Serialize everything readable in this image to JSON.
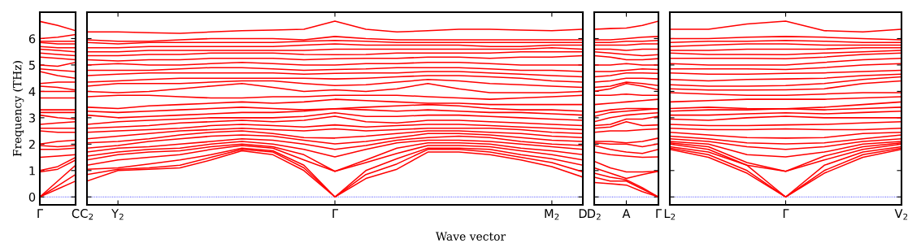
{
  "chart_data": [
    {
      "type": "line",
      "ylabel": "Frequency (THz)",
      "categories": [
        "Γ",
        null,
        "C"
      ],
      "ylim": [
        -0.3,
        7.0
      ],
      "yticks": [
        0,
        1,
        2,
        3,
        4,
        5,
        6
      ],
      "grid": false,
      "legend": false,
      "marker": "none",
      "line_style": "solid",
      "ref_lines": [
        {
          "axis": "y",
          "value": 0,
          "color": "#0000ff",
          "line_style": "dotted"
        }
      ],
      "series": [
        {
          "color": "#ff0000",
          "values": [
            0,
            0.3,
            0.6
          ]
        },
        {
          "color": "#ff0000",
          "values": [
            0,
            0.42,
            0.85
          ]
        },
        {
          "color": "#ff0000",
          "values": [
            0,
            0.6,
            1.2
          ]
        },
        {
          "color": "#ff0000",
          "values": [
            0.95,
            1.05,
            1.4
          ]
        },
        {
          "color": "#ff0000",
          "values": [
            1.0,
            1.15,
            1.5
          ]
        },
        {
          "color": "#ff0000",
          "values": [
            1.5,
            1.55,
            1.6
          ]
        },
        {
          "color": "#ff0000",
          "values": [
            1.8,
            1.8,
            1.85
          ]
        },
        {
          "color": "#ff0000",
          "values": [
            1.95,
            1.9,
            1.95
          ]
        },
        {
          "color": "#ff0000",
          "values": [
            2.0,
            2.1,
            2.15
          ]
        },
        {
          "color": "#ff0000",
          "values": [
            2.5,
            2.45,
            2.45
          ]
        },
        {
          "color": "#ff0000",
          "values": [
            2.6,
            2.6,
            2.6
          ]
        },
        {
          "color": "#ff0000",
          "values": [
            2.75,
            2.8,
            2.85
          ]
        },
        {
          "color": "#ff0000",
          "values": [
            3.1,
            3.0,
            2.95
          ]
        },
        {
          "color": "#ff0000",
          "values": [
            3.2,
            3.2,
            3.2
          ]
        },
        {
          "color": "#ff0000",
          "values": [
            3.3,
            3.3,
            3.3
          ]
        },
        {
          "color": "#ff0000",
          "values": [
            3.75,
            3.75,
            3.75
          ]
        },
        {
          "color": "#ff0000",
          "values": [
            4.0,
            4.0,
            4.0
          ]
        },
        {
          "color": "#ff0000",
          "values": [
            4.2,
            4.15,
            4.05
          ]
        },
        {
          "color": "#ff0000",
          "values": [
            4.3,
            4.35,
            4.35
          ]
        },
        {
          "color": "#ff0000",
          "values": [
            4.75,
            4.6,
            4.5
          ]
        },
        {
          "color": "#ff0000",
          "values": [
            4.85,
            4.8,
            4.75
          ]
        },
        {
          "color": "#ff0000",
          "values": [
            5.0,
            4.95,
            5.1
          ]
        },
        {
          "color": "#ff0000",
          "values": [
            5.3,
            5.25,
            5.2
          ]
        },
        {
          "color": "#ff0000",
          "values": [
            5.45,
            5.4,
            5.35
          ]
        },
        {
          "color": "#ff0000",
          "values": [
            5.6,
            5.55,
            5.5
          ]
        },
        {
          "color": "#ff0000",
          "values": [
            5.7,
            5.65,
            5.65
          ]
        },
        {
          "color": "#ff0000",
          "values": [
            5.85,
            5.8,
            5.8
          ]
        },
        {
          "color": "#ff0000",
          "values": [
            5.9,
            5.9,
            5.9
          ]
        },
        {
          "color": "#ff0000",
          "values": [
            6.0,
            6.05,
            6.15
          ]
        },
        {
          "color": "#ff0000",
          "values": [
            6.65,
            6.5,
            6.3
          ]
        }
      ]
    },
    {
      "type": "line",
      "xlabel": "Wave vector",
      "categories": [
        "C$_{2}$",
        "Y$_{2}$",
        null,
        null,
        null,
        null,
        null,
        null,
        "Γ",
        null,
        null,
        null,
        null,
        null,
        null,
        "M$_{2}$",
        "D"
      ],
      "ylim": [
        -0.3,
        7.0
      ],
      "yticks": [
        0,
        1,
        2,
        3,
        4,
        5,
        6
      ],
      "tick_labels": "x",
      "grid": false,
      "legend": false,
      "marker": "none",
      "line_style": "solid",
      "ref_lines": [
        {
          "axis": "y",
          "value": 0,
          "color": "#0000ff",
          "line_style": "dotted"
        }
      ],
      "series": [
        {
          "color": "#ff0000",
          "values": [
            0.6,
            1.0,
            1.05,
            1.1,
            1.4,
            1.75,
            1.6,
            1.0,
            0,
            0.7,
            1.05,
            1.7,
            1.7,
            1.6,
            1.4,
            1.15,
            0.75
          ]
        },
        {
          "color": "#ff0000",
          "values": [
            0.85,
            1.05,
            1.1,
            1.2,
            1.5,
            1.8,
            1.7,
            1.1,
            0,
            0.85,
            1.25,
            1.8,
            1.8,
            1.7,
            1.5,
            1.3,
            0.95
          ]
        },
        {
          "color": "#ff0000",
          "values": [
            1.05,
            1.1,
            1.25,
            1.4,
            1.6,
            1.85,
            1.75,
            1.2,
            0,
            1.0,
            1.45,
            1.85,
            1.85,
            1.8,
            1.6,
            1.45,
            1.2
          ]
        },
        {
          "color": "#ff0000",
          "values": [
            1.2,
            1.4,
            1.5,
            1.6,
            1.8,
            1.95,
            1.85,
            1.4,
            0.97,
            1.3,
            1.65,
            1.95,
            1.95,
            1.9,
            1.75,
            1.6,
            1.4
          ]
        },
        {
          "color": "#ff0000",
          "values": [
            1.4,
            1.6,
            1.7,
            1.75,
            1.9,
            2.0,
            1.9,
            1.6,
            0.97,
            1.4,
            1.85,
            2.05,
            2.05,
            2.0,
            1.85,
            1.75,
            1.6
          ]
        },
        {
          "color": "#ff0000",
          "values": [
            1.55,
            1.7,
            1.8,
            1.85,
            2.0,
            2.1,
            2.0,
            1.8,
            1.52,
            1.8,
            2.05,
            2.15,
            2.15,
            2.1,
            2.0,
            1.9,
            1.8
          ]
        },
        {
          "color": "#ff0000",
          "values": [
            1.7,
            1.85,
            1.9,
            2.0,
            2.1,
            2.2,
            2.15,
            2.0,
            1.8,
            1.95,
            2.15,
            2.25,
            2.3,
            2.25,
            2.1,
            2.0,
            1.95
          ]
        },
        {
          "color": "#ff0000",
          "values": [
            1.85,
            1.95,
            2.1,
            2.2,
            2.3,
            2.35,
            2.3,
            2.15,
            2.01,
            2.1,
            2.25,
            2.4,
            2.4,
            2.35,
            2.25,
            2.15,
            2.1
          ]
        },
        {
          "color": "#ff0000",
          "values": [
            2.05,
            2.1,
            2.2,
            2.35,
            2.45,
            2.5,
            2.4,
            2.25,
            2.23,
            2.3,
            2.4,
            2.5,
            2.5,
            2.45,
            2.4,
            2.3,
            2.25
          ]
        },
        {
          "color": "#ff0000",
          "values": [
            2.2,
            2.3,
            2.4,
            2.5,
            2.55,
            2.6,
            2.55,
            2.5,
            2.58,
            2.5,
            2.55,
            2.6,
            2.6,
            2.6,
            2.55,
            2.45,
            2.4
          ]
        },
        {
          "color": "#ff0000",
          "values": [
            2.45,
            2.5,
            2.55,
            2.6,
            2.7,
            2.75,
            2.7,
            2.65,
            2.73,
            2.65,
            2.7,
            2.75,
            2.75,
            2.7,
            2.65,
            2.6,
            2.55
          ]
        },
        {
          "color": "#ff0000",
          "values": [
            2.6,
            2.65,
            2.7,
            2.8,
            2.85,
            2.9,
            2.85,
            2.9,
            3.06,
            2.85,
            2.8,
            2.9,
            2.9,
            2.85,
            2.8,
            2.75,
            2.7
          ]
        },
        {
          "color": "#ff0000",
          "values": [
            2.75,
            2.85,
            2.9,
            2.95,
            3.0,
            3.0,
            3.0,
            3.05,
            3.19,
            3.05,
            3.05,
            3.1,
            3.1,
            3.05,
            3.0,
            2.95,
            2.9
          ]
        },
        {
          "color": "#ff0000",
          "values": [
            3.1,
            3.0,
            3.05,
            3.1,
            3.15,
            3.2,
            3.2,
            3.25,
            3.34,
            3.3,
            3.25,
            3.3,
            3.25,
            3.2,
            3.2,
            3.15,
            3.1
          ]
        },
        {
          "color": "#ff0000",
          "values": [
            3.25,
            3.2,
            3.25,
            3.3,
            3.35,
            3.4,
            3.35,
            3.3,
            3.34,
            3.4,
            3.45,
            3.5,
            3.45,
            3.35,
            3.3,
            3.3,
            3.25
          ]
        },
        {
          "color": "#ff0000",
          "values": [
            3.4,
            3.35,
            3.45,
            3.5,
            3.55,
            3.6,
            3.55,
            3.6,
            3.7,
            3.65,
            3.6,
            3.55,
            3.55,
            3.5,
            3.5,
            3.5,
            3.5
          ]
        },
        {
          "color": "#ff0000",
          "values": [
            3.8,
            3.85,
            3.85,
            3.8,
            3.75,
            3.75,
            3.8,
            3.8,
            3.85,
            3.85,
            3.85,
            3.8,
            3.75,
            3.7,
            3.75,
            3.8,
            3.85
          ]
        },
        {
          "color": "#ff0000",
          "values": [
            4.0,
            3.95,
            4.0,
            4.1,
            4.2,
            4.3,
            4.15,
            4.0,
            4.06,
            4.0,
            4.1,
            4.3,
            4.1,
            3.95,
            3.95,
            3.95,
            4.0
          ]
        },
        {
          "color": "#ff0000",
          "values": [
            4.2,
            4.3,
            4.3,
            4.3,
            4.35,
            4.4,
            4.4,
            4.3,
            4.22,
            4.25,
            4.35,
            4.45,
            4.4,
            4.3,
            4.25,
            4.2,
            4.15
          ]
        },
        {
          "color": "#ff0000",
          "values": [
            4.35,
            4.4,
            4.45,
            4.5,
            4.5,
            4.5,
            4.5,
            4.5,
            4.47,
            4.5,
            4.55,
            4.6,
            4.6,
            4.55,
            4.5,
            4.4,
            4.35
          ]
        },
        {
          "color": "#ff0000",
          "values": [
            4.6,
            4.65,
            4.7,
            4.7,
            4.7,
            4.7,
            4.7,
            4.65,
            4.68,
            4.7,
            4.7,
            4.75,
            4.75,
            4.7,
            4.65,
            4.6,
            4.55
          ]
        },
        {
          "color": "#ff0000",
          "values": [
            4.8,
            4.8,
            4.8,
            4.85,
            4.9,
            4.9,
            4.85,
            4.8,
            4.83,
            4.85,
            4.9,
            4.9,
            4.9,
            4.85,
            4.8,
            4.8,
            4.75
          ]
        },
        {
          "color": "#ff0000",
          "values": [
            5.0,
            5.05,
            5.0,
            5.0,
            5.05,
            5.1,
            5.05,
            5.0,
            5.0,
            5.05,
            5.05,
            5.1,
            5.1,
            5.05,
            5.0,
            5.0,
            5.0
          ]
        },
        {
          "color": "#ff0000",
          "values": [
            5.2,
            5.15,
            5.2,
            5.2,
            5.25,
            5.25,
            5.25,
            5.2,
            5.24,
            5.25,
            5.25,
            5.3,
            5.3,
            5.25,
            5.3,
            5.3,
            5.35
          ]
        },
        {
          "color": "#ff0000",
          "values": [
            5.35,
            5.35,
            5.4,
            5.4,
            5.45,
            5.45,
            5.45,
            5.4,
            5.39,
            5.4,
            5.45,
            5.45,
            5.45,
            5.45,
            5.5,
            5.5,
            5.5
          ]
        },
        {
          "color": "#ff0000",
          "values": [
            5.5,
            5.5,
            5.55,
            5.55,
            5.55,
            5.55,
            5.55,
            5.55,
            5.6,
            5.6,
            5.6,
            5.6,
            5.6,
            5.6,
            5.6,
            5.65,
            5.6
          ]
        },
        {
          "color": "#ff0000",
          "values": [
            5.65,
            5.65,
            5.7,
            5.7,
            5.7,
            5.7,
            5.7,
            5.75,
            5.8,
            5.75,
            5.75,
            5.75,
            5.75,
            5.7,
            5.7,
            5.75,
            5.75
          ]
        },
        {
          "color": "#ff0000",
          "values": [
            5.85,
            5.8,
            5.85,
            5.85,
            5.85,
            5.85,
            5.85,
            5.9,
            5.93,
            5.9,
            5.85,
            5.85,
            5.85,
            5.85,
            5.85,
            5.85,
            5.85
          ]
        },
        {
          "color": "#ff0000",
          "values": [
            5.95,
            5.9,
            5.9,
            5.95,
            6.0,
            6.0,
            6.0,
            5.95,
            6.08,
            6.0,
            5.95,
            5.95,
            5.95,
            5.95,
            5.95,
            5.95,
            5.95
          ]
        },
        {
          "color": "#ff0000",
          "values": [
            6.25,
            6.25,
            6.22,
            6.2,
            6.25,
            6.3,
            6.32,
            6.35,
            6.66,
            6.35,
            6.25,
            6.3,
            6.35,
            6.35,
            6.32,
            6.3,
            6.35
          ]
        }
      ]
    },
    {
      "type": "line",
      "categories": [
        "D$_{2}$",
        null,
        "A",
        null,
        "Γ"
      ],
      "ylim": [
        -0.3,
        7.0
      ],
      "yticks": [
        0,
        1,
        2,
        3,
        4,
        5,
        6
      ],
      "tick_labels": "x",
      "grid": false,
      "legend": false,
      "marker": "none",
      "line_style": "solid",
      "ref_lines": [
        {
          "axis": "y",
          "value": 0,
          "color": "#0000ff",
          "line_style": "dotted"
        }
      ],
      "series": [
        {
          "color": "#ff0000",
          "values": [
            0.55,
            0.5,
            0.45,
            0.2,
            0
          ]
        },
        {
          "color": "#ff0000",
          "values": [
            0.75,
            0.6,
            0.6,
            0.3,
            0
          ]
        },
        {
          "color": "#ff0000",
          "values": [
            0.9,
            0.75,
            0.65,
            0.35,
            0
          ]
        },
        {
          "color": "#ff0000",
          "values": [
            1.1,
            0.9,
            0.7,
            0.85,
            0.97
          ]
        },
        {
          "color": "#ff0000",
          "values": [
            1.35,
            1.1,
            0.95,
            0.95,
            0.97
          ]
        },
        {
          "color": "#ff0000",
          "values": [
            1.7,
            1.6,
            1.55,
            1.5,
            1.52
          ]
        },
        {
          "color": "#ff0000",
          "values": [
            1.95,
            1.8,
            1.7,
            1.65,
            1.8
          ]
        },
        {
          "color": "#ff0000",
          "values": [
            2.05,
            2.0,
            2.0,
            1.9,
            2.01
          ]
        },
        {
          "color": "#ff0000",
          "values": [
            2.1,
            2.1,
            2.05,
            2.1,
            2.23
          ]
        },
        {
          "color": "#ff0000",
          "values": [
            2.45,
            2.5,
            2.5,
            2.55,
            2.58
          ]
        },
        {
          "color": "#ff0000",
          "values": [
            2.6,
            2.65,
            2.85,
            2.7,
            2.73
          ]
        },
        {
          "color": "#ff0000",
          "values": [
            2.7,
            2.75,
            2.95,
            2.95,
            3.06
          ]
        },
        {
          "color": "#ff0000",
          "values": [
            2.85,
            3.0,
            3.1,
            3.15,
            3.19
          ]
        },
        {
          "color": "#ff0000",
          "values": [
            3.05,
            3.2,
            3.25,
            3.3,
            3.34
          ]
        },
        {
          "color": "#ff0000",
          "values": [
            3.2,
            3.3,
            3.35,
            3.35,
            3.34
          ]
        },
        {
          "color": "#ff0000",
          "values": [
            3.5,
            3.55,
            3.6,
            3.65,
            3.7
          ]
        },
        {
          "color": "#ff0000",
          "values": [
            3.85,
            3.85,
            3.9,
            3.85,
            3.85
          ]
        },
        {
          "color": "#ff0000",
          "values": [
            4.0,
            4.1,
            4.3,
            4.2,
            4.06
          ]
        },
        {
          "color": "#ff0000",
          "values": [
            4.15,
            4.2,
            4.35,
            4.3,
            4.22
          ]
        },
        {
          "color": "#ff0000",
          "values": [
            4.35,
            4.4,
            4.5,
            4.5,
            4.47
          ]
        },
        {
          "color": "#ff0000",
          "values": [
            4.55,
            4.6,
            4.7,
            4.7,
            4.68
          ]
        },
        {
          "color": "#ff0000",
          "values": [
            4.75,
            4.75,
            4.8,
            4.85,
            4.83
          ]
        },
        {
          "color": "#ff0000",
          "values": [
            5.0,
            5.0,
            5.05,
            5.0,
            5.0
          ]
        },
        {
          "color": "#ff0000",
          "values": [
            5.35,
            5.3,
            5.2,
            5.2,
            5.24
          ]
        },
        {
          "color": "#ff0000",
          "values": [
            5.5,
            5.45,
            5.4,
            5.35,
            5.39
          ]
        },
        {
          "color": "#ff0000",
          "values": [
            5.6,
            5.6,
            5.55,
            5.6,
            5.6
          ]
        },
        {
          "color": "#ff0000",
          "values": [
            5.75,
            5.75,
            5.75,
            5.8,
            5.8
          ]
        },
        {
          "color": "#ff0000",
          "values": [
            5.85,
            5.85,
            5.9,
            5.9,
            5.93
          ]
        },
        {
          "color": "#ff0000",
          "values": [
            5.95,
            5.95,
            6.0,
            6.05,
            6.08
          ]
        },
        {
          "color": "#ff0000",
          "values": [
            6.35,
            6.38,
            6.4,
            6.5,
            6.66
          ]
        }
      ]
    },
    {
      "type": "line",
      "categories": [
        "L$_{2}$",
        null,
        null,
        "Γ",
        null,
        null,
        "V$_{2}$"
      ],
      "ylim": [
        -0.3,
        7.0
      ],
      "yticks": [
        0,
        1,
        2,
        3,
        4,
        5,
        6
      ],
      "tick_labels": "x",
      "grid": false,
      "legend": false,
      "marker": "none",
      "line_style": "solid",
      "ref_lines": [
        {
          "axis": "y",
          "value": 0,
          "color": "#0000ff",
          "line_style": "dotted"
        }
      ],
      "series": [
        {
          "color": "#ff0000",
          "values": [
            1.8,
            1.5,
            0.9,
            0,
            0.9,
            1.5,
            1.8
          ]
        },
        {
          "color": "#ff0000",
          "values": [
            1.85,
            1.6,
            1.0,
            0,
            1.0,
            1.6,
            1.85
          ]
        },
        {
          "color": "#ff0000",
          "values": [
            1.9,
            1.7,
            1.2,
            0,
            1.2,
            1.7,
            1.9
          ]
        },
        {
          "color": "#ff0000",
          "values": [
            2.0,
            1.8,
            1.2,
            0.97,
            1.4,
            1.8,
            2.0
          ]
        },
        {
          "color": "#ff0000",
          "values": [
            2.05,
            1.9,
            1.3,
            0.97,
            1.55,
            1.9,
            2.05
          ]
        },
        {
          "color": "#ff0000",
          "values": [
            2.1,
            2.0,
            1.6,
            1.52,
            1.7,
            2.0,
            2.1
          ]
        },
        {
          "color": "#ff0000",
          "values": [
            2.2,
            2.1,
            1.9,
            1.8,
            1.9,
            2.1,
            2.2
          ]
        },
        {
          "color": "#ff0000",
          "values": [
            2.3,
            2.2,
            2.05,
            2.01,
            2.05,
            2.2,
            2.35
          ]
        },
        {
          "color": "#ff0000",
          "values": [
            2.45,
            2.35,
            2.25,
            2.23,
            2.25,
            2.4,
            2.45
          ]
        },
        {
          "color": "#ff0000",
          "values": [
            2.6,
            2.55,
            2.55,
            2.58,
            2.55,
            2.55,
            2.6
          ]
        },
        {
          "color": "#ff0000",
          "values": [
            2.75,
            2.7,
            2.7,
            2.73,
            2.75,
            2.8,
            2.85
          ]
        },
        {
          "color": "#ff0000",
          "values": [
            2.95,
            2.9,
            3.0,
            3.06,
            3.0,
            3.0,
            3.0
          ]
        },
        {
          "color": "#ff0000",
          "values": [
            3.1,
            3.1,
            3.15,
            3.19,
            3.15,
            3.2,
            3.25
          ]
        },
        {
          "color": "#ff0000",
          "values": [
            3.25,
            3.3,
            3.3,
            3.34,
            3.3,
            3.35,
            3.4
          ]
        },
        {
          "color": "#ff0000",
          "values": [
            3.35,
            3.4,
            3.35,
            3.34,
            3.4,
            3.5,
            3.6
          ]
        },
        {
          "color": "#ff0000",
          "values": [
            3.6,
            3.65,
            3.7,
            3.7,
            3.7,
            3.75,
            3.8
          ]
        },
        {
          "color": "#ff0000",
          "values": [
            3.95,
            3.9,
            3.85,
            3.85,
            3.9,
            3.95,
            3.95
          ]
        },
        {
          "color": "#ff0000",
          "values": [
            4.1,
            4.05,
            4.05,
            4.06,
            4.1,
            4.3,
            4.4
          ]
        },
        {
          "color": "#ff0000",
          "values": [
            4.25,
            4.2,
            4.2,
            4.22,
            4.3,
            4.45,
            4.55
          ]
        },
        {
          "color": "#ff0000",
          "values": [
            4.45,
            4.4,
            4.45,
            4.47,
            4.5,
            4.6,
            4.65
          ]
        },
        {
          "color": "#ff0000",
          "values": [
            4.7,
            4.65,
            4.65,
            4.68,
            4.7,
            4.75,
            4.8
          ]
        },
        {
          "color": "#ff0000",
          "values": [
            4.85,
            4.85,
            4.85,
            4.83,
            4.9,
            5.0,
            5.05
          ]
        },
        {
          "color": "#ff0000",
          "values": [
            5.05,
            5.0,
            5.0,
            5.0,
            5.1,
            5.2,
            5.25
          ]
        },
        {
          "color": "#ff0000",
          "values": [
            5.25,
            5.25,
            5.25,
            5.24,
            5.3,
            5.4,
            5.45
          ]
        },
        {
          "color": "#ff0000",
          "values": [
            5.45,
            5.4,
            5.4,
            5.39,
            5.45,
            5.5,
            5.55
          ]
        },
        {
          "color": "#ff0000",
          "values": [
            5.55,
            5.55,
            5.6,
            5.6,
            5.6,
            5.65,
            5.65
          ]
        },
        {
          "color": "#ff0000",
          "values": [
            5.7,
            5.75,
            5.8,
            5.8,
            5.75,
            5.75,
            5.75
          ]
        },
        {
          "color": "#ff0000",
          "values": [
            5.85,
            5.9,
            5.9,
            5.93,
            5.9,
            5.85,
            5.85
          ]
        },
        {
          "color": "#ff0000",
          "values": [
            6.0,
            6.0,
            6.05,
            6.08,
            6.05,
            6.0,
            5.95
          ]
        },
        {
          "color": "#ff0000",
          "values": [
            6.35,
            6.35,
            6.55,
            6.66,
            6.3,
            6.25,
            6.35
          ]
        }
      ]
    }
  ]
}
